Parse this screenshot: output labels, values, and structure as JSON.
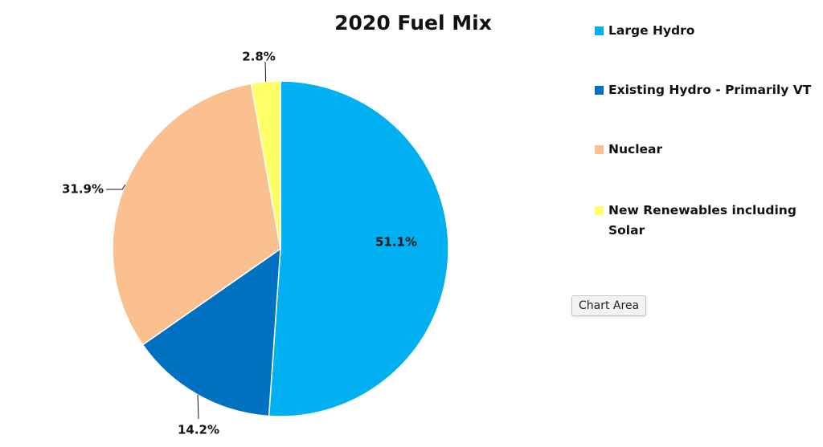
{
  "chart_data": {
    "type": "pie",
    "title": "2020 Fuel Mix",
    "categories": [
      "Large Hydro",
      "Existing Hydro - Primarily VT",
      "Nuclear",
      "New Renewables including Solar"
    ],
    "values": [
      51.1,
      14.2,
      31.9,
      2.8
    ],
    "data_labels": [
      "51.1%",
      "14.2%",
      "31.9%",
      "2.8%"
    ],
    "colors": [
      "#00b0f0",
      "#0070c0",
      "#fac090",
      "#ffff66"
    ],
    "start_angle_deg": 0,
    "direction": "clockwise",
    "legend_position": "right"
  },
  "tooltip": {
    "text": "Chart Area"
  }
}
